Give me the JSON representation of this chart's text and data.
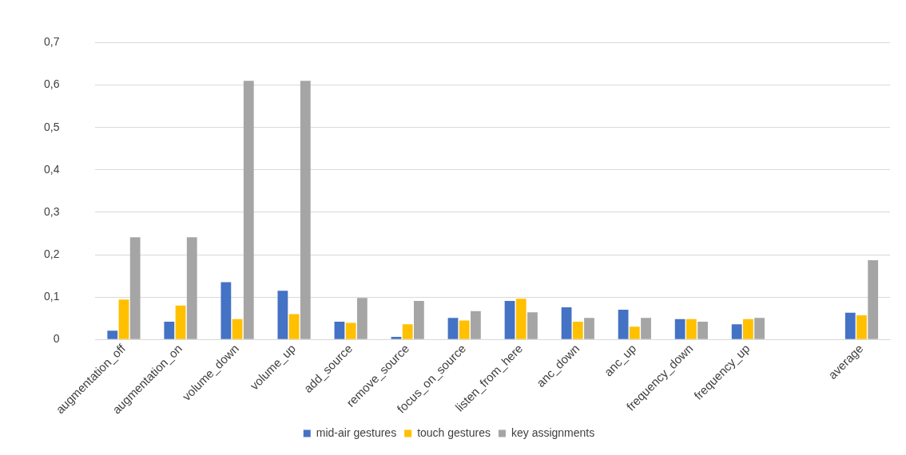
{
  "chart_data": {
    "type": "bar",
    "categories": [
      "augmentation_off",
      "augmentation_on",
      "volume_down",
      "volume_up",
      "add_source",
      "remove_source",
      "focus_on_source",
      "listen_from_here",
      "anc_down",
      "anc_up",
      "frequency_down",
      "frequency_up",
      null,
      "average"
    ],
    "series": [
      {
        "name": "mid-air gestures",
        "color": "#4472c4",
        "values": [
          0.021,
          0.042,
          0.135,
          0.115,
          0.042,
          0.006,
          0.051,
          0.091,
          0.076,
          0.07,
          0.048,
          0.036,
          null,
          0.063
        ]
      },
      {
        "name": "touch gestures",
        "color": "#ffc000",
        "values": [
          0.094,
          0.08,
          0.048,
          0.06,
          0.039,
          0.036,
          0.045,
          0.096,
          0.042,
          0.03,
          0.048,
          0.048,
          null,
          0.057
        ]
      },
      {
        "name": "key assignments",
        "color": "#a5a5a5",
        "values": [
          0.241,
          0.241,
          0.61,
          0.61,
          0.098,
          0.091,
          0.067,
          0.064,
          0.051,
          0.051,
          0.042,
          0.051,
          null,
          0.187
        ]
      }
    ],
    "ylim": [
      0,
      0.7
    ],
    "yticks": [
      0,
      {
        "value": 0.1,
        "label": "0,1"
      },
      {
        "value": 0.2,
        "label": "0,2"
      },
      {
        "value": 0.3,
        "label": "0,3"
      },
      {
        "value": 0.4,
        "label": "0,4"
      },
      {
        "value": 0.5,
        "label": "0,5"
      },
      {
        "value": 0.6,
        "label": "0,6"
      },
      {
        "value": 0.7,
        "label": "0,7"
      }
    ],
    "grid": "y",
    "legend": "bottom"
  }
}
